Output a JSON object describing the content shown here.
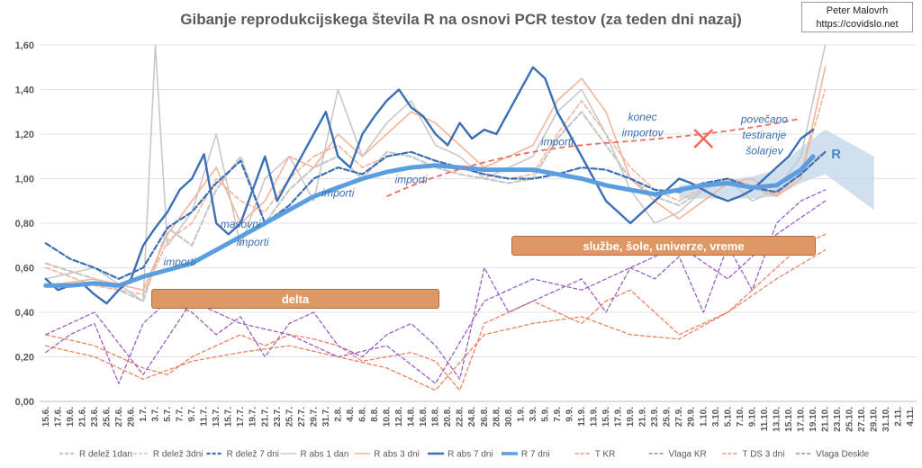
{
  "credit": {
    "author": "Peter Malovrh",
    "site": "https://covidslo.net"
  },
  "chart_data": {
    "type": "line",
    "title": "Gibanje reprodukcijskega števila R na osnovi PCR testov (za teden dni nazaj)",
    "ylim": [
      0,
      1.6
    ],
    "yticks": [
      "0,00",
      "0,20",
      "0,40",
      "0,60",
      "0,80",
      "1,00",
      "1,20",
      "1,40",
      "1,60"
    ],
    "x_labels": [
      "15.6.",
      "17.6.",
      "19.6.",
      "21.6.",
      "23.6.",
      "25.6.",
      "27.6.",
      "29.6.",
      "1.7.",
      "3.7.",
      "5.7.",
      "7.7.",
      "9.7.",
      "11.7.",
      "13.7.",
      "15.7.",
      "17.7.",
      "19.7.",
      "21.7.",
      "23.7.",
      "25.7.",
      "27.7.",
      "29.7.",
      "31.7.",
      "2.8.",
      "4.8.",
      "6.8.",
      "8.8.",
      "10.8.",
      "12.8.",
      "14.8.",
      "16.8.",
      "18.8.",
      "20.8.",
      "22.8.",
      "24.8.",
      "26.8.",
      "28.8.",
      "30.8.",
      "1.9.",
      "3.9.",
      "5.9.",
      "7.9.",
      "9.9.",
      "11.9.",
      "13.9.",
      "15.9.",
      "17.9.",
      "19.9.",
      "21.9.",
      "23.9.",
      "25.9.",
      "27.9.",
      "29.9.",
      "1.10.",
      "3.10.",
      "5.10.",
      "7.10.",
      "9.10.",
      "11.10.",
      "13.10.",
      "15.10.",
      "17.10.",
      "19.10.",
      "21.10.",
      "23.10.",
      "25.10.",
      "27.10.",
      "29.10.",
      "31.10.",
      "2.11.",
      "4.11."
    ],
    "series": [
      {
        "name": "R delež 1dan",
        "color": "#c8c8c8",
        "style": "dash-thick",
        "x": [
          0,
          4,
          8,
          10,
          12,
          14,
          16,
          18,
          20,
          22,
          24,
          26,
          28,
          30,
          32,
          34,
          36,
          38,
          40,
          42,
          44,
          46,
          48,
          50,
          52,
          54,
          56,
          58,
          60,
          62,
          64
        ],
        "values": [
          0.62,
          0.55,
          0.45,
          0.78,
          0.7,
          0.95,
          1.1,
          0.8,
          0.95,
          1.05,
          1.1,
          1.0,
          1.12,
          1.1,
          1.05,
          1.02,
          1.0,
          0.98,
          1.0,
          1.18,
          1.3,
          1.15,
          1.0,
          0.92,
          0.88,
          0.95,
          1.0,
          0.96,
          0.92,
          1.05,
          1.12
        ]
      },
      {
        "name": "R delež 3dni",
        "color": "#f5b49a",
        "style": "dash",
        "x": [
          0,
          4,
          8,
          10,
          12,
          14,
          16,
          18,
          20,
          22,
          24,
          26,
          28,
          30,
          32,
          34,
          36,
          38,
          40,
          42,
          44,
          46,
          48,
          50,
          52,
          54,
          56,
          58,
          60,
          62,
          64
        ],
        "values": [
          0.6,
          0.52,
          0.48,
          0.72,
          0.8,
          1.0,
          0.9,
          0.85,
          1.0,
          1.1,
          1.15,
          1.05,
          1.1,
          1.12,
          1.08,
          1.05,
          1.02,
          1.0,
          1.02,
          1.2,
          1.35,
          1.2,
          1.05,
          0.95,
          0.9,
          0.96,
          1.0,
          0.97,
          0.93,
          1.02,
          1.4
        ]
      },
      {
        "name": "R delež 7 dni",
        "color": "#3a6fb5",
        "style": "dash-thick",
        "x": [
          0,
          2,
          4,
          6,
          8,
          10,
          12,
          14,
          16,
          18,
          20,
          22,
          24,
          26,
          28,
          30,
          32,
          34,
          36,
          38,
          40,
          42,
          44,
          46,
          48,
          50,
          52,
          54,
          56,
          58,
          60,
          62,
          64
        ],
        "values": [
          0.71,
          0.64,
          0.6,
          0.55,
          0.6,
          0.78,
          0.85,
          0.98,
          1.08,
          0.8,
          0.88,
          1.0,
          1.05,
          1.02,
          1.1,
          1.12,
          1.08,
          1.05,
          1.02,
          1.0,
          1.0,
          1.02,
          1.05,
          1.04,
          1.0,
          0.95,
          0.94,
          0.98,
          1.0,
          0.96,
          0.94,
          1.02,
          1.12
        ]
      },
      {
        "name": "R abs 1 dan",
        "color": "#c8c8c8",
        "style": "solid",
        "x": [
          0,
          4,
          8,
          9,
          10,
          12,
          14,
          16,
          18,
          20,
          22,
          24,
          26,
          28,
          30,
          32,
          34,
          36,
          38,
          40,
          42,
          44,
          46,
          48,
          50,
          52,
          54,
          56,
          58,
          60,
          62,
          64
        ],
        "values": [
          0.55,
          0.6,
          0.45,
          1.6,
          0.7,
          0.85,
          1.2,
          0.7,
          1.0,
          1.1,
          0.9,
          1.4,
          1.1,
          1.25,
          1.35,
          1.15,
          1.1,
          1.0,
          1.05,
          1.1,
          1.3,
          1.4,
          1.2,
          0.95,
          0.8,
          0.85,
          0.95,
          1.0,
          0.9,
          0.95,
          1.1,
          1.6
        ]
      },
      {
        "name": "R abs 3 dni",
        "color": "#f5b49a",
        "style": "solid",
        "x": [
          0,
          4,
          8,
          10,
          12,
          14,
          16,
          18,
          20,
          22,
          24,
          26,
          28,
          30,
          32,
          34,
          36,
          38,
          40,
          42,
          44,
          46,
          48,
          50,
          52,
          54,
          56,
          58,
          60,
          62,
          64
        ],
        "values": [
          0.52,
          0.55,
          0.5,
          0.75,
          0.9,
          1.05,
          0.8,
          0.9,
          1.1,
          1.05,
          1.2,
          1.1,
          1.2,
          1.3,
          1.25,
          1.15,
          1.05,
          1.1,
          1.15,
          1.35,
          1.45,
          1.3,
          1.0,
          0.9,
          0.82,
          0.9,
          0.98,
          1.0,
          0.92,
          1.0,
          1.5
        ]
      },
      {
        "name": "R abs 7 dni",
        "color": "#3a6fb5",
        "style": "solid-thick",
        "x": [
          0,
          1,
          2,
          3,
          4,
          5,
          6,
          7,
          8,
          9,
          10,
          11,
          12,
          13,
          14,
          15,
          16,
          17,
          18,
          19,
          20,
          21,
          22,
          23,
          24,
          25,
          26,
          27,
          28,
          29,
          30,
          31,
          32,
          33,
          34,
          35,
          36,
          37,
          38,
          39,
          40,
          41,
          42,
          43,
          44,
          45,
          46,
          47,
          48,
          49,
          50,
          51,
          52,
          53,
          54,
          55,
          56,
          57,
          58,
          59,
          60,
          61,
          62,
          63
        ],
        "values": [
          0.55,
          0.5,
          0.52,
          0.53,
          0.48,
          0.44,
          0.5,
          0.55,
          0.7,
          0.78,
          0.85,
          0.95,
          1.0,
          1.11,
          0.8,
          0.75,
          0.8,
          0.95,
          1.1,
          0.9,
          1.0,
          1.1,
          1.2,
          1.3,
          1.1,
          1.05,
          1.2,
          1.28,
          1.35,
          1.4,
          1.32,
          1.28,
          1.2,
          1.15,
          1.25,
          1.18,
          1.22,
          1.2,
          1.3,
          1.4,
          1.5,
          1.45,
          1.3,
          1.2,
          1.1,
          1.0,
          0.9,
          0.85,
          0.8,
          0.85,
          0.9,
          0.95,
          1.0,
          0.98,
          0.95,
          0.92,
          0.9,
          0.92,
          0.95,
          1.0,
          1.05,
          1.1,
          1.18,
          1.22
        ]
      },
      {
        "name": "R 7 dni",
        "color": "#5a9ee0",
        "style": "solid-wide",
        "x": [
          0,
          2,
          4,
          6,
          8,
          10,
          12,
          14,
          16,
          18,
          20,
          22,
          24,
          26,
          28,
          30,
          32,
          34,
          36,
          38,
          40,
          42,
          44,
          46,
          48,
          50,
          52,
          54,
          56,
          58,
          60,
          62,
          63
        ],
        "values": [
          0.52,
          0.52,
          0.53,
          0.52,
          0.56,
          0.59,
          0.62,
          0.68,
          0.74,
          0.8,
          0.86,
          0.92,
          0.96,
          1.0,
          1.03,
          1.05,
          1.06,
          1.05,
          1.04,
          1.04,
          1.04,
          1.02,
          1.0,
          0.97,
          0.95,
          0.93,
          0.95,
          0.97,
          0.98,
          0.96,
          0.97,
          1.04,
          1.1
        ]
      },
      {
        "name": "T KR",
        "color": "#f08060",
        "style": "dash-thin",
        "x": [
          0,
          4,
          8,
          10,
          12,
          14,
          16,
          18,
          20,
          22,
          24,
          26,
          28,
          30,
          32,
          34,
          36,
          38,
          40,
          42,
          44,
          46,
          48,
          50,
          52,
          54,
          56,
          58,
          60,
          62,
          64
        ],
        "values": [
          0.3,
          0.25,
          0.15,
          0.12,
          0.2,
          0.25,
          0.3,
          0.25,
          0.3,
          0.28,
          0.25,
          0.18,
          0.2,
          0.22,
          0.18,
          0.05,
          0.35,
          0.4,
          0.45,
          0.4,
          0.35,
          0.45,
          0.5,
          0.4,
          0.3,
          0.35,
          0.4,
          0.5,
          0.6,
          0.7,
          0.75
        ]
      },
      {
        "name": "Vlaga KR",
        "color": "#9a60c0",
        "style": "dash-thin",
        "x": [
          0,
          2,
          4,
          6,
          8,
          10,
          12,
          14,
          16,
          18,
          20,
          22,
          24,
          26,
          28,
          30,
          32,
          34,
          36,
          38,
          40,
          42,
          44,
          46,
          48,
          50,
          52,
          54,
          56,
          58,
          60,
          62,
          64
        ],
        "values": [
          0.22,
          0.3,
          0.35,
          0.08,
          0.35,
          0.45,
          0.4,
          0.3,
          0.38,
          0.2,
          0.35,
          0.4,
          0.25,
          0.2,
          0.3,
          0.35,
          0.25,
          0.1,
          0.6,
          0.4,
          0.45,
          0.5,
          0.55,
          0.4,
          0.6,
          0.55,
          0.65,
          0.4,
          0.7,
          0.5,
          0.8,
          0.9,
          0.95
        ]
      },
      {
        "name": "T DS 3 dni",
        "color": "#f08060",
        "style": "dash-thin",
        "x": [
          0,
          4,
          8,
          12,
          16,
          20,
          24,
          28,
          32,
          36,
          40,
          44,
          48,
          52,
          56,
          60,
          64
        ],
        "values": [
          0.25,
          0.2,
          0.1,
          0.18,
          0.22,
          0.25,
          0.2,
          0.15,
          0.05,
          0.3,
          0.35,
          0.38,
          0.3,
          0.28,
          0.4,
          0.55,
          0.68
        ]
      },
      {
        "name": "Vlaga Deskle",
        "color": "#9a60c0",
        "style": "dash-thin",
        "x": [
          0,
          4,
          8,
          12,
          16,
          20,
          24,
          28,
          32,
          36,
          40,
          44,
          48,
          52,
          56,
          60,
          64
        ],
        "values": [
          0.3,
          0.4,
          0.12,
          0.45,
          0.35,
          0.3,
          0.2,
          0.25,
          0.08,
          0.45,
          0.55,
          0.5,
          0.6,
          0.7,
          0.55,
          0.75,
          0.9
        ]
      }
    ],
    "annotations": [
      {
        "text": "importi",
        "x": 11,
        "y": 0.61
      },
      {
        "text": "masovni",
        "x": 16,
        "y": 0.78
      },
      {
        "text": "importi",
        "x": 17,
        "y": 0.7
      },
      {
        "text": "importi",
        "x": 24,
        "y": 0.92
      },
      {
        "text": "importi",
        "x": 30,
        "y": 0.98
      },
      {
        "text": "importi",
        "x": 42,
        "y": 1.15
      },
      {
        "text": "konec",
        "x": 49,
        "y": 1.26
      },
      {
        "text": "importov",
        "x": 49,
        "y": 1.19
      },
      {
        "text": "povečano",
        "x": 59,
        "y": 1.25
      },
      {
        "text": "testiranje",
        "x": 59,
        "y": 1.18
      },
      {
        "text": "šolarjev",
        "x": 59,
        "y": 1.11
      }
    ],
    "bands": [
      {
        "label": "delta",
        "color": "#dd9866"
      },
      {
        "label": "službe, šole, univerze, vreme",
        "color": "#dd9866"
      }
    ],
    "r_label": "R"
  }
}
